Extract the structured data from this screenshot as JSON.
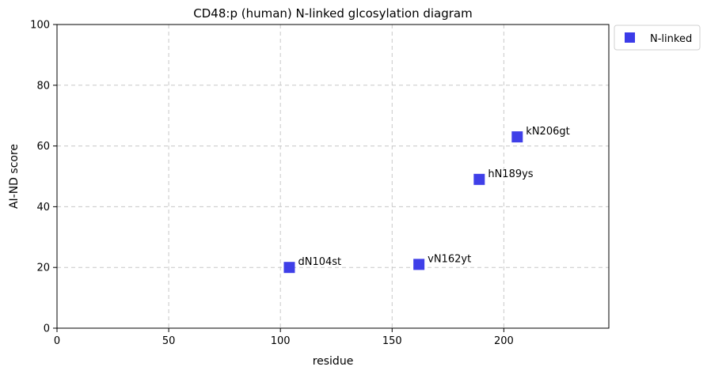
{
  "chart_data": {
    "type": "scatter",
    "title": "CD48:p (human) N-linked glcosylation diagram",
    "xlabel": "residue",
    "ylabel": "AI-ND score",
    "xlim": [
      0,
      247
    ],
    "ylim": [
      0,
      100
    ],
    "xticks": [
      0,
      50,
      100,
      150,
      200
    ],
    "yticks": [
      0,
      20,
      40,
      60,
      80,
      100
    ],
    "grid": true,
    "legend_position": "outside-top-right",
    "series": [
      {
        "name": "N-linked",
        "color": "#3b3be8",
        "marker": "square",
        "points": [
          {
            "x": 104,
            "y": 20,
            "label": "dN104st"
          },
          {
            "x": 162,
            "y": 21,
            "label": "vN162yt"
          },
          {
            "x": 189,
            "y": 49,
            "label": "hN189ys"
          },
          {
            "x": 206,
            "y": 63,
            "label": "kN206gt"
          }
        ]
      }
    ]
  }
}
